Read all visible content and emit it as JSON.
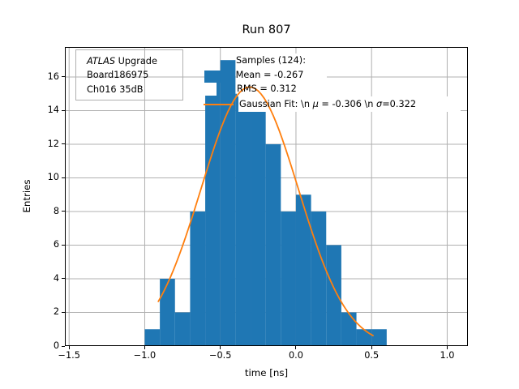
{
  "title": "Run 807",
  "axes": {
    "xlabel": "time [ns]",
    "ylabel": "Entries"
  },
  "info_box": {
    "line1_italic": "ATLAS",
    "line1_rest": " Upgrade",
    "line2": "Board186975",
    "line3": "Ch016 35dB"
  },
  "legend": {
    "samples": "Samples (124):",
    "mean": " Mean = -0.267",
    "rms": "RMS = 0.312",
    "gauss_prefix": "Gaussian Fit: \\n ",
    "gauss_mu": "μ",
    "gauss_mid": " = -0.306 \\n ",
    "gauss_sigma": "σ",
    "gauss_suffix": "=0.322"
  },
  "colors": {
    "bar": "#1f77b4",
    "fit": "#ff7f0e",
    "grid": "#b0b0b0",
    "spine": "#000000"
  },
  "chart_data": {
    "type": "histogram",
    "title": "Run 807",
    "xlabel": "time [ns]",
    "ylabel": "Entries",
    "bin_start": -1.0,
    "bin_width": 0.1,
    "counts": [
      1,
      4,
      2,
      8,
      16,
      17,
      15,
      14,
      12,
      8,
      9,
      8,
      6,
      2,
      1,
      1
    ],
    "total_samples": 124,
    "stats": {
      "mean": -0.267,
      "rms": 0.312
    },
    "gaussian_fit": {
      "mu": -0.306,
      "sigma": 0.322,
      "amplitude": 15.4,
      "x_range": [
        -0.91,
        0.51
      ]
    },
    "xlim": [
      -1.528,
      1.137
    ],
    "ylim": [
      0,
      17.78
    ],
    "x_tick_values": [
      -1.5,
      -1.0,
      -0.5,
      0.0,
      0.5,
      1.0
    ],
    "x_tick_labels": [
      "−1.5",
      "−1.0",
      "−0.5",
      "0.0",
      "0.5",
      "1.0"
    ],
    "y_tick_values": [
      0,
      2,
      4,
      6,
      8,
      10,
      12,
      14,
      16
    ],
    "grid": true,
    "legend_position": "upper center"
  }
}
